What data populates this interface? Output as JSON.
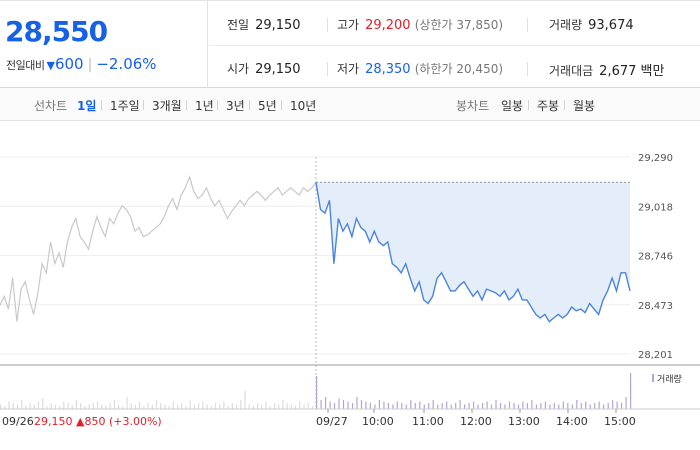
{
  "summary": {
    "current_price": "28,550",
    "change_label": "전일대비",
    "change_arrow": "▼",
    "change_amount": "600",
    "change_separator": "|",
    "change_percent": "−2.06%"
  },
  "stats": {
    "prev_close_label": "전일",
    "prev_close": "29,150",
    "high_label": "고가",
    "high": "29,200",
    "upper_limit": "(상한가 37,850)",
    "volume_label": "거래량",
    "volume": "93,674",
    "open_label": "시가",
    "open": "29,150",
    "low_label": "저가",
    "low": "28,350",
    "lower_limit": "(하한가 20,450)",
    "trade_value_label": "거래대금",
    "trade_value": "2,677 백만"
  },
  "period_bar": {
    "line_label": "선차트",
    "line_tabs": [
      "1일",
      "1주일",
      "3개월",
      "1년",
      "3년",
      "5년",
      "10년"
    ],
    "active_tab": "1일",
    "candle_label": "봉차트",
    "candle_tabs": [
      "일봉",
      "주봉",
      "월봉"
    ]
  },
  "chart_data": {
    "type": "line",
    "y_ticks": [
      "29,290",
      "29,018",
      "28,746",
      "28,473",
      "28,201"
    ],
    "ylim": [
      28201,
      29290
    ],
    "prev_close": 29150,
    "x_labels": [
      "09/27",
      "10:00",
      "11:00",
      "12:00",
      "13:00",
      "14:00",
      "15:00"
    ],
    "prev_day_label": "09/26",
    "prev_day_info": "29,150 ▲850 (+3.00%)",
    "volume_legend": "거래량",
    "prev_day_series": [
      28470,
      28520,
      28450,
      28620,
      28380,
      28560,
      28600,
      28500,
      28420,
      28540,
      28700,
      28650,
      28820,
      28700,
      28760,
      28680,
      28820,
      28900,
      28950,
      28850,
      28820,
      28780,
      28880,
      28960,
      28900,
      28850,
      28950,
      28920,
      28980,
      29020,
      29000,
      28960,
      28880,
      28900,
      28850,
      28860,
      28880,
      28900,
      28920,
      28960,
      29020,
      29060,
      29000,
      29080,
      29120,
      29180,
      29100,
      29060,
      29080,
      29120,
      29060,
      29020,
      29050,
      29000,
      28950,
      28990,
      29020,
      29050,
      29020,
      29060,
      29080,
      29100,
      29080,
      29050,
      29080,
      29100,
      29120,
      29080,
      29100,
      29120,
      29100,
      29080,
      29120,
      29100,
      29120,
      29150
    ],
    "today_series": [
      29150,
      29000,
      28980,
      29050,
      28700,
      28950,
      28880,
      28920,
      28850,
      28950,
      28900,
      28880,
      28820,
      28880,
      28820,
      28800,
      28820,
      28700,
      28680,
      28650,
      28700,
      28620,
      28550,
      28600,
      28500,
      28480,
      28520,
      28620,
      28650,
      28600,
      28550,
      28550,
      28580,
      28600,
      28560,
      28520,
      28550,
      28500,
      28560,
      28550,
      28540,
      28520,
      28550,
      28500,
      28520,
      28560,
      28500,
      28500,
      28460,
      28420,
      28400,
      28420,
      28380,
      28400,
      28420,
      28400,
      28420,
      28460,
      28440,
      28450,
      28430,
      28480,
      28450,
      28420,
      28500,
      28550,
      28620,
      28550,
      28650,
      28650,
      28550
    ],
    "volume": {
      "prev_day": [
        3,
        2,
        5,
        4,
        3,
        6,
        2,
        4,
        3,
        5,
        7,
        2,
        4,
        3,
        2,
        5,
        4,
        3,
        6,
        4,
        2,
        3,
        4,
        5,
        3,
        2,
        4,
        6,
        3,
        2,
        8,
        4,
        3,
        5,
        2,
        4,
        3,
        6,
        4,
        3,
        2,
        5,
        3,
        4,
        2,
        6,
        3,
        4,
        5,
        3,
        2,
        4,
        3,
        5,
        2,
        4,
        3,
        6,
        12,
        3,
        2,
        4,
        3,
        5,
        2,
        4,
        3,
        6,
        4,
        3,
        2,
        5,
        3,
        4,
        2,
        6
      ],
      "today": [
        22,
        6,
        8,
        5,
        4,
        7,
        6,
        5,
        4,
        8,
        6,
        5,
        4,
        3,
        6,
        5,
        4,
        3,
        5,
        4,
        3,
        6,
        4,
        5,
        3,
        4,
        6,
        3,
        4,
        5,
        3,
        4,
        6,
        3,
        4,
        5,
        3,
        4,
        5,
        3,
        6,
        4,
        3,
        5,
        4,
        3,
        5,
        4,
        6,
        3,
        4,
        5,
        3,
        4,
        3,
        5,
        4,
        3,
        6,
        4,
        5,
        3,
        4,
        5,
        3,
        4,
        6,
        5,
        4,
        8,
        24
      ]
    }
  },
  "colors": {
    "price_down": "#1761e6",
    "price_up": "#e0202a",
    "line_today": "#4a84e0",
    "line_prev": "#c8c8c8",
    "fill_today": "#e4eefb",
    "volume_bar": "#b5a4d6"
  }
}
